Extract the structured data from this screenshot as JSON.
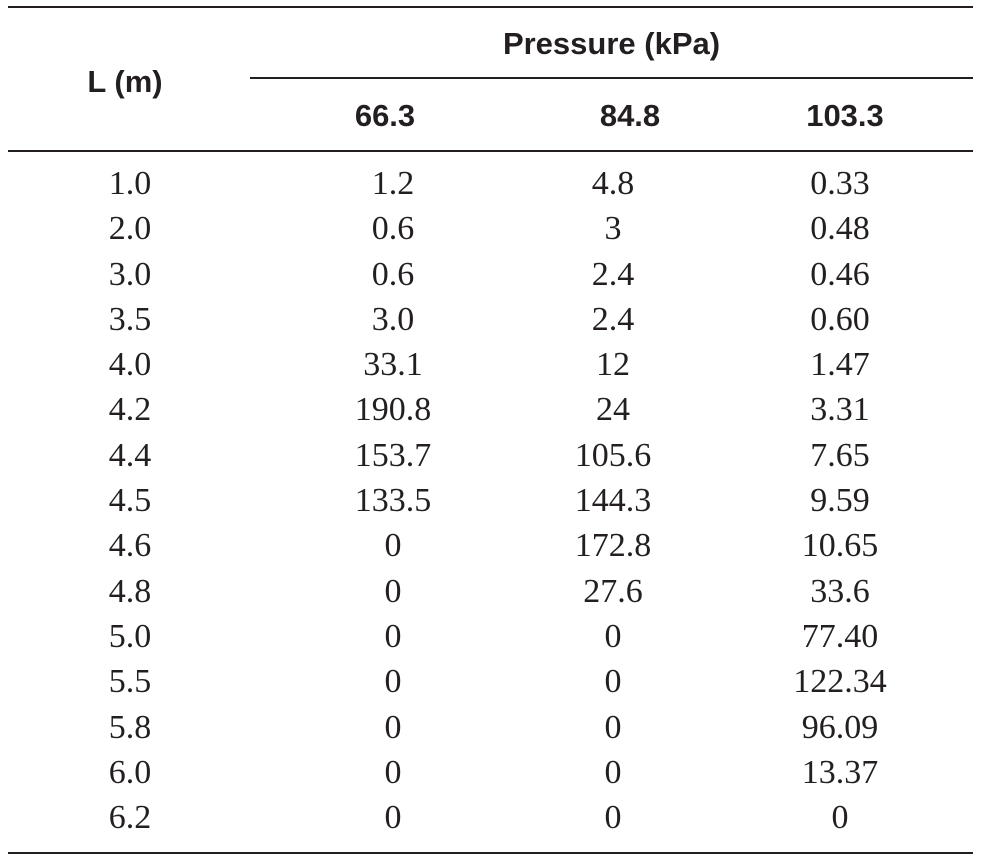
{
  "table": {
    "row_header_label": "L (m)",
    "group_header_label": "Pressure (kPa)",
    "column_headers": [
      "66.3",
      "84.8",
      "103.3"
    ],
    "rows": [
      {
        "l": "1.0",
        "values": [
          "1.2",
          "4.8",
          "0.33"
        ]
      },
      {
        "l": "2.0",
        "values": [
          "0.6",
          "3",
          "0.48"
        ]
      },
      {
        "l": "3.0",
        "values": [
          "0.6",
          "2.4",
          "0.46"
        ]
      },
      {
        "l": "3.5",
        "values": [
          "3.0",
          "2.4",
          "0.60"
        ]
      },
      {
        "l": "4.0",
        "values": [
          "33.1",
          "12",
          "1.47"
        ]
      },
      {
        "l": "4.2",
        "values": [
          "190.8",
          "24",
          "3.31"
        ]
      },
      {
        "l": "4.4",
        "values": [
          "153.7",
          "105.6",
          "7.65"
        ]
      },
      {
        "l": "4.5",
        "values": [
          "133.5",
          "144.3",
          "9.59"
        ]
      },
      {
        "l": "4.6",
        "values": [
          "0",
          "172.8",
          "10.65"
        ]
      },
      {
        "l": "4.8",
        "values": [
          "0",
          "27.6",
          "33.6"
        ]
      },
      {
        "l": "5.0",
        "values": [
          "0",
          "0",
          "77.40"
        ]
      },
      {
        "l": "5.5",
        "values": [
          "0",
          "0",
          "122.34"
        ]
      },
      {
        "l": "5.8",
        "values": [
          "0",
          "0",
          "96.09"
        ]
      },
      {
        "l": "6.0",
        "values": [
          "0",
          "0",
          "13.37"
        ]
      },
      {
        "l": "6.2",
        "values": [
          "0",
          "0",
          "0"
        ]
      }
    ]
  }
}
